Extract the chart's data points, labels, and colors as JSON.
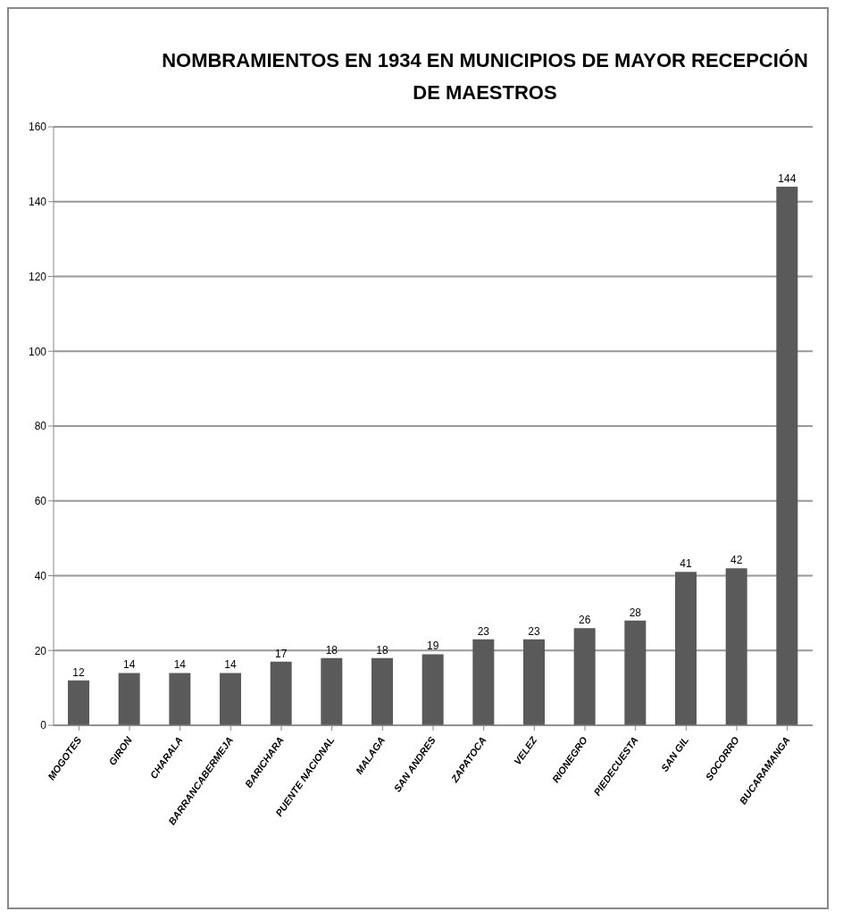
{
  "chart_data": {
    "type": "bar",
    "title": "NOMBRAMIENTOS EN 1934 EN MUNICIPIOS DE MAYOR RECEPCIÓN DE MAESTROS",
    "categories": [
      "MOGOTES",
      "GIRON",
      "CHARALA",
      "BARRANCABERMEJA",
      "BARICHARA",
      "PUENTE NACIONAL",
      "MALAGA",
      "SAN ANDRES",
      "ZAPATOCA",
      "VELEZ",
      "RIONEGRO",
      "PIEDECUESTA",
      "SAN GIL",
      "SOCORRO",
      "BUCARAMANGA"
    ],
    "values": [
      12,
      14,
      14,
      14,
      17,
      18,
      18,
      19,
      23,
      23,
      26,
      28,
      41,
      42,
      144
    ],
    "color": "#5a5a5a",
    "ylim": [
      0,
      160
    ],
    "yticks": [
      0,
      20,
      40,
      60,
      80,
      100,
      120,
      140,
      160
    ],
    "grid": "y",
    "data_labels": true
  }
}
